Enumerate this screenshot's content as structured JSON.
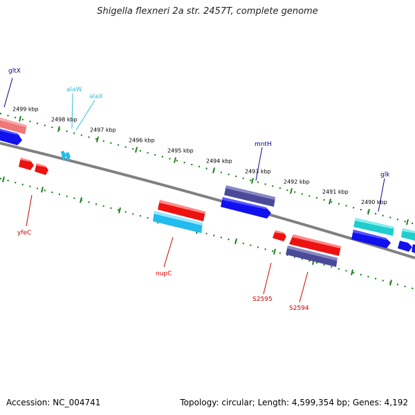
{
  "title": "Shigella flexneri 2a str. 2457T, complete genome",
  "footer": {
    "accession": "Accession: NC_004741",
    "stats": "Topology: circular; Length: 4,599,354 bp; Genes: 4,192"
  },
  "colors": {
    "backbone": "#808080",
    "ticks": "#1e7f1e",
    "red": "#ee1111",
    "pink": "#ee7777",
    "blue": "#1111ee",
    "cyan": "#22cccc",
    "skyblue": "#22bbee",
    "slate": "#4a4a99",
    "label_red": "#cc0000",
    "label_navy": "#00008b",
    "label_cyan": "#33bbdd"
  },
  "ticks": [
    "2499 kbp",
    "2498 kbp",
    "2497 kbp",
    "2496 kbp",
    "2495 kbp",
    "2494 kbp",
    "2493 kbp",
    "2492 kbp",
    "2491 kbp",
    "2490 kbp"
  ],
  "genes": [
    {
      "name": "gltX",
      "label": "gltX",
      "color": "pink",
      "label_color": "label_navy"
    },
    {
      "name": "gltX-b",
      "label": "",
      "color": "blue"
    },
    {
      "name": "alaW",
      "label": "alaW",
      "color": "skyblue",
      "label_color": "label_cyan"
    },
    {
      "name": "alaX",
      "label": "alaX",
      "color": "skyblue",
      "label_color": "label_cyan"
    },
    {
      "name": "yfeC",
      "label": "yfeC",
      "color": "red",
      "label_color": "label_red"
    },
    {
      "name": "yfeC-b",
      "label": "",
      "color": "red"
    },
    {
      "name": "nupC",
      "label": "nupC",
      "color": "cyan",
      "label_color": "label_red"
    },
    {
      "name": "nupC-red",
      "label": "",
      "color": "red"
    },
    {
      "name": "mntH",
      "label": "mntH",
      "color": "slate",
      "label_color": "label_navy"
    },
    {
      "name": "mntH-blue",
      "label": "",
      "color": "blue"
    },
    {
      "name": "S2595",
      "label": "S2595",
      "color": "red",
      "label_color": "label_red"
    },
    {
      "name": "S2594",
      "label": "S2594",
      "color": "slate",
      "label_color": "label_red"
    },
    {
      "name": "S2594-red",
      "label": "",
      "color": "red"
    },
    {
      "name": "glk",
      "label": "glk",
      "color": "cyan",
      "label_color": "label_navy"
    },
    {
      "name": "glk-blue",
      "label": "",
      "color": "blue"
    },
    {
      "name": "edge-cyan",
      "label": "",
      "color": "cyan"
    },
    {
      "name": "edge-blue",
      "label": "",
      "color": "blue"
    }
  ]
}
